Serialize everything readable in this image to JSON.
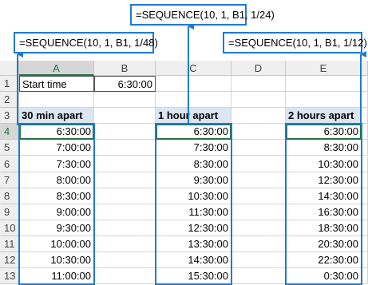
{
  "formulas": {
    "top": "=SEQUENCE(10, 1, B1, 1/24)",
    "left": "=SEQUENCE(10, 1, B1, 1/48)",
    "right": "=SEQUENCE(10, 1, B1, 1/12)"
  },
  "sheet": {
    "columns": [
      "A",
      "B",
      "C",
      "D",
      "E"
    ],
    "row_numbers": [
      1,
      2,
      3,
      4,
      5,
      6,
      7,
      8,
      9,
      10,
      11,
      12,
      13
    ],
    "rows": [
      [
        "Start time",
        "6:30:00",
        null,
        null,
        null
      ],
      [
        null,
        null,
        null,
        null,
        null
      ],
      [
        "30 min apart",
        null,
        "1 hour apart",
        null,
        "2 hours apart"
      ],
      [
        "6:30:00",
        null,
        "6:30:00",
        null,
        "6:30:00"
      ],
      [
        "7:00:00",
        null,
        "7:30:00",
        null,
        "8:30:00"
      ],
      [
        "7:30:00",
        null,
        "8:30:00",
        null,
        "10:30:00"
      ],
      [
        "8:00:00",
        null,
        "9:30:00",
        null,
        "12:30:00"
      ],
      [
        "8:30:00",
        null,
        "10:30:00",
        null,
        "14:30:00"
      ],
      [
        "9:00:00",
        null,
        "11:30:00",
        null,
        "16:30:00"
      ],
      [
        "9:30:00",
        null,
        "12:30:00",
        null,
        "18:30:00"
      ],
      [
        "10:00:00",
        null,
        "13:30:00",
        null,
        "20:30:00"
      ],
      [
        "10:30:00",
        null,
        "14:30:00",
        null,
        "22:30:00"
      ],
      [
        "11:00:00",
        null,
        "15:30:00",
        null,
        "0:30:00"
      ]
    ]
  }
}
